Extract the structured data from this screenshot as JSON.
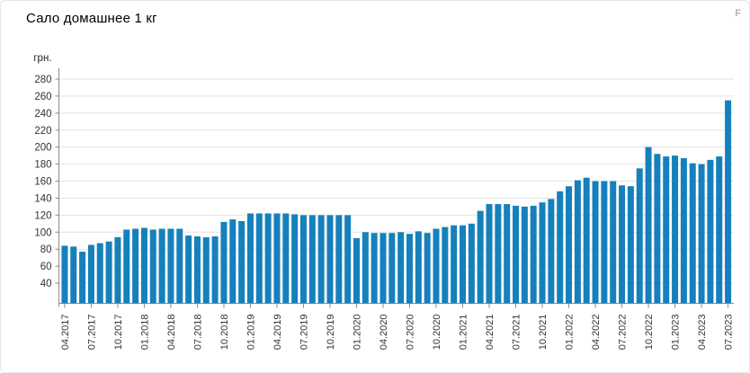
{
  "page": {
    "title": "Сало домашнее 1 кг",
    "watermark": "F"
  },
  "chart_data": {
    "type": "bar",
    "title": "Сало домашнее 1 кг",
    "ylabel": "грн.",
    "xlabel": "",
    "bar_color": "#1580bc",
    "grid": "horizontal",
    "grid_color": "#e3e3e3",
    "axis_color": "#8c8c8c",
    "tick_label_color": "#333333",
    "y_ticks": [
      40,
      60,
      80,
      100,
      120,
      140,
      160,
      180,
      200,
      220,
      240,
      260,
      280
    ],
    "ylim": [
      16,
      293
    ],
    "x_tick_every_n": 3,
    "categories": [
      "04.2017",
      "05.2017",
      "06.2017",
      "07.2017",
      "08.2017",
      "09.2017",
      "10.2017",
      "11.2017",
      "12.2017",
      "01.2018",
      "02.2018",
      "03.2018",
      "04.2018",
      "05.2018",
      "06.2018",
      "07.2018",
      "08.2018",
      "09.2018",
      "10.2018",
      "11.2018",
      "12.2018",
      "01.2019",
      "02.2019",
      "03.2019",
      "04.2019",
      "05.2019",
      "06.2019",
      "07.2019",
      "08.2019",
      "09.2019",
      "10.2019",
      "11.2019",
      "12.2019",
      "01.2020",
      "02.2020",
      "03.2020",
      "04.2020",
      "05.2020",
      "06.2020",
      "07.2020",
      "08.2020",
      "09.2020",
      "10.2020",
      "11.2020",
      "12.2020",
      "01.2021",
      "02.2021",
      "03.2021",
      "04.2021",
      "05.2021",
      "06.2021",
      "07.2021",
      "08.2021",
      "09.2021",
      "10.2021",
      "11.2021",
      "12.2021",
      "01.2022",
      "02.2022",
      "03.2022",
      "04.2022",
      "05.2022",
      "06.2022",
      "07.2022",
      "08.2022",
      "09.2022",
      "10.2022",
      "11.2022",
      "12.2022",
      "01.2023",
      "02.2023",
      "03.2023",
      "04.2023",
      "05.2023",
      "06.2023",
      "07.2023"
    ],
    "values": [
      84,
      83,
      77,
      85,
      87,
      89,
      94,
      103,
      104,
      105,
      103,
      104,
      104,
      104,
      96,
      95,
      94,
      95,
      112,
      115,
      113,
      122,
      122,
      122,
      122,
      122,
      121,
      120,
      120,
      120,
      120,
      120,
      120,
      93,
      100,
      99,
      99,
      99,
      100,
      98,
      101,
      99,
      104,
      106,
      108,
      108,
      110,
      125,
      133,
      133,
      133,
      131,
      130,
      131,
      135,
      139,
      148,
      154,
      161,
      164,
      160,
      160,
      160,
      155,
      154,
      175,
      200,
      192,
      189,
      190,
      187,
      181,
      180,
      185,
      189,
      255
    ]
  }
}
